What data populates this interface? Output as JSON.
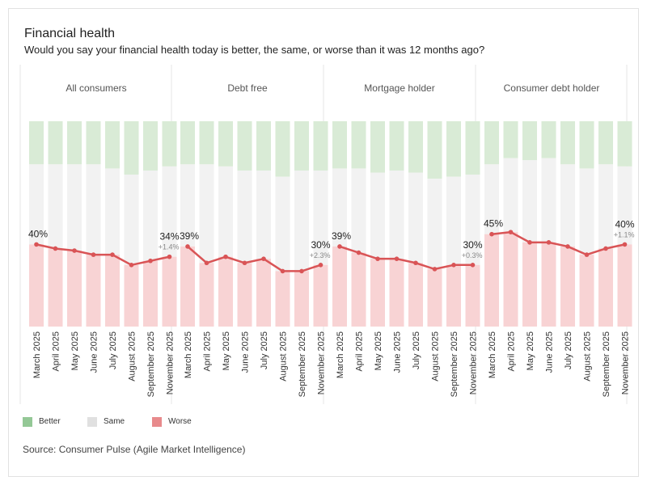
{
  "title": "Financial health",
  "subtitle": "Would you say your financial health today is better, the same, or worse than it was 12 months ago?",
  "source": "Source: Consumer Pulse (Agile Market Intelligence)",
  "legend": [
    {
      "label": "Better",
      "color": "#94c896"
    },
    {
      "label": "Same",
      "color": "#e0e0e0"
    },
    {
      "label": "Worse",
      "color": "#e88a8c"
    }
  ],
  "colors": {
    "better_fill": "#d9ebd6",
    "same_fill": "#f2f2f2",
    "worse_fill": "#f8d3d4",
    "line": "#d95456",
    "divider": "#e4e4e4"
  },
  "chart_data": {
    "type": "bar",
    "stacked": true,
    "description_of_axes": "Stacked 100% bars (Worse / Same / Better) per month, with a line tracing the Worse share; y axis percent 0-100, not shown",
    "ylim": [
      0,
      100
    ],
    "categories": [
      "March 2025",
      "April 2025",
      "May 2025",
      "June 2025",
      "July 2025",
      "August 2025",
      "September 2025",
      "November 2025"
    ],
    "panels": [
      {
        "name": "All consumers",
        "worse": [
          40,
          38,
          37,
          35,
          35,
          30,
          32,
          34
        ],
        "same": [
          39,
          41,
          42,
          44,
          42,
          44,
          44,
          44
        ],
        "better": [
          21,
          21,
          21,
          21,
          23,
          26,
          24,
          22
        ],
        "first_label": "40%",
        "last_label": "34%",
        "change_label": "+1.4%"
      },
      {
        "name": "Debt free",
        "worse": [
          39,
          31,
          34,
          31,
          33,
          27,
          27,
          30
        ],
        "same": [
          40,
          48,
          44,
          45,
          43,
          46,
          49,
          46
        ],
        "better": [
          21,
          21,
          22,
          24,
          24,
          27,
          24,
          24
        ],
        "first_label": "39%",
        "last_label": "30%",
        "change_label": "+2.3%"
      },
      {
        "name": "Mortgage holder",
        "worse": [
          39,
          36,
          33,
          33,
          31,
          28,
          30,
          30
        ],
        "same": [
          38,
          41,
          42,
          43,
          44,
          44,
          43,
          44
        ],
        "better": [
          23,
          23,
          25,
          24,
          25,
          28,
          27,
          26
        ],
        "first_label": "39%",
        "last_label": "30%",
        "change_label": "+0.3%"
      },
      {
        "name": "Consumer debt holder",
        "worse": [
          45,
          46,
          41,
          41,
          39,
          35,
          38,
          40
        ],
        "same": [
          34,
          36,
          40,
          41,
          40,
          42,
          41,
          38
        ],
        "better": [
          21,
          18,
          19,
          18,
          21,
          23,
          21,
          22
        ],
        "first_label": "45%",
        "last_label": "40%",
        "change_label": "+1.1%"
      }
    ]
  }
}
